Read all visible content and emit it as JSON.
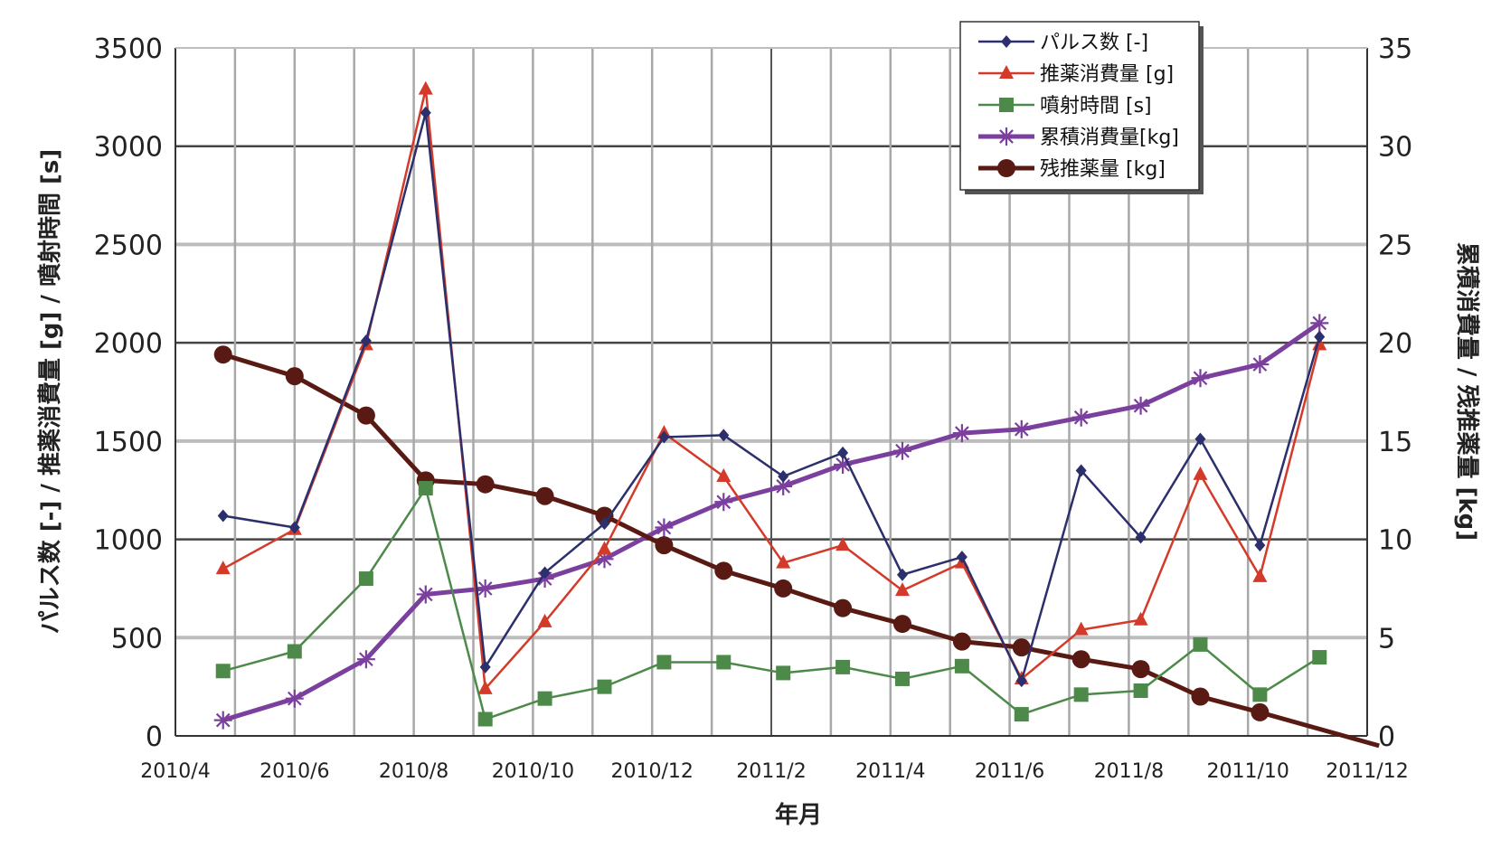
{
  "chart_data": {
    "type": "line",
    "xlabel": "年月",
    "ylabel_left": "パルス数 [-] / 推薬消費量 [g] / 噴射時間 [s]",
    "ylabel_right": "累積消費量 / 残推薬量 [kg]",
    "ylim_left": [
      0,
      3500
    ],
    "ylim_right": [
      0,
      35
    ],
    "left_ticks": [
      "0",
      "500",
      "1000",
      "1500",
      "2000",
      "2500",
      "3000",
      "3500"
    ],
    "right_ticks": [
      "0",
      "5",
      "10",
      "15",
      "20",
      "25",
      "30",
      "35"
    ],
    "x_ticks": [
      "2010/4",
      "2010/6",
      "2010/8",
      "2010/10",
      "2010/12",
      "2011/2",
      "2011/4",
      "2011/6",
      "2011/8",
      "2011/10",
      "2011/12"
    ],
    "x_range_months": [
      0,
      20
    ],
    "x": [
      0.8,
      2.0,
      3.2,
      4.2,
      5.2,
      6.2,
      7.2,
      8.2,
      9.2,
      10.2,
      11.2,
      12.2,
      13.2,
      14.2,
      15.2,
      16.2,
      17.2,
      18.2,
      19.2,
      20.2
    ],
    "legend_position": "top-right",
    "series": [
      {
        "name": "パルス数 [-]",
        "axis": "left",
        "color": "#2b2f6b",
        "marker": "diamond",
        "values": [
          1120,
          1060,
          2010,
          3170,
          350,
          830,
          1080,
          1520,
          1530,
          1320,
          1440,
          820,
          910,
          280,
          1350,
          1010,
          1510,
          970,
          2030,
          null
        ]
      },
      {
        "name": "推薬消費量 [g]",
        "axis": "left",
        "color": "#d43a2a",
        "marker": "triangle",
        "values": [
          850,
          1050,
          1990,
          3290,
          240,
          580,
          950,
          1540,
          1320,
          880,
          970,
          740,
          880,
          290,
          540,
          590,
          1330,
          810,
          1990,
          null
        ]
      },
      {
        "name": "噴射時間 [s]",
        "axis": "left",
        "color": "#4d8a4a",
        "marker": "square",
        "values": [
          330,
          430,
          800,
          1260,
          85,
          190,
          250,
          375,
          375,
          320,
          350,
          290,
          355,
          110,
          210,
          230,
          465,
          210,
          400,
          null
        ]
      },
      {
        "name": "累積消費量[kg]",
        "axis": "right",
        "color": "#7b3f9e",
        "marker": "star",
        "values": [
          0.8,
          1.9,
          3.9,
          7.2,
          7.5,
          8.0,
          9.0,
          10.6,
          11.9,
          12.7,
          13.8,
          14.5,
          15.4,
          15.6,
          16.2,
          16.8,
          18.2,
          18.9,
          21.0,
          null
        ]
      },
      {
        "name": "残推薬量 [kg]",
        "axis": "right",
        "color": "#5a1a14",
        "marker": "circle",
        "values": [
          19.4,
          18.3,
          16.3,
          13.0,
          12.8,
          12.2,
          11.2,
          9.7,
          8.4,
          7.5,
          6.5,
          5.7,
          4.8,
          4.5,
          3.9,
          3.4,
          2.0,
          1.2,
          null,
          -0.5
        ]
      }
    ]
  }
}
